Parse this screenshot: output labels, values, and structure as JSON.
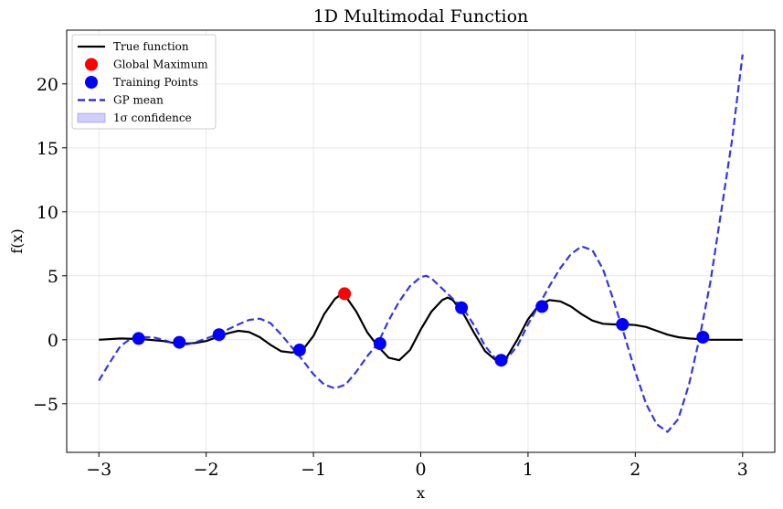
{
  "chart_data": {
    "type": "line",
    "title": "1D Multimodal Function",
    "xlabel": "x",
    "ylabel": "f(x)",
    "xlim": [
      -3.3,
      3.3
    ],
    "ylim": [
      -8.8,
      24.2
    ],
    "xticks": [
      -3,
      -2,
      -1,
      0,
      1,
      2,
      3
    ],
    "xtick_labels": [
      "−3",
      "−2",
      "−1",
      "0",
      "1",
      "2",
      "3"
    ],
    "yticks": [
      -5,
      0,
      5,
      10,
      15,
      20
    ],
    "ytick_labels": [
      "−5",
      "0",
      "5",
      "10",
      "15",
      "20"
    ],
    "grid": true,
    "legend_position": "top-left",
    "series": [
      {
        "name": "True function",
        "kind": "line",
        "color": "#000000",
        "style": "solid",
        "x": [
          -3.0,
          -2.8,
          -2.6,
          -2.4,
          -2.3,
          -2.2,
          -2.1,
          -2.0,
          -1.9,
          -1.8,
          -1.7,
          -1.6,
          -1.5,
          -1.4,
          -1.3,
          -1.2,
          -1.1,
          -1.0,
          -0.9,
          -0.8,
          -0.75,
          -0.7,
          -0.6,
          -0.5,
          -0.4,
          -0.3,
          -0.2,
          -0.1,
          0.0,
          0.1,
          0.2,
          0.25,
          0.3,
          0.4,
          0.5,
          0.6,
          0.7,
          0.75,
          0.8,
          0.9,
          1.0,
          1.1,
          1.2,
          1.3,
          1.4,
          1.5,
          1.6,
          1.7,
          1.8,
          1.9,
          2.0,
          2.1,
          2.2,
          2.3,
          2.4,
          2.5,
          2.6,
          2.7,
          2.8,
          3.0
        ],
        "y": [
          0.0,
          0.1,
          0.05,
          -0.1,
          -0.25,
          -0.3,
          -0.25,
          -0.1,
          0.2,
          0.5,
          0.7,
          0.6,
          0.2,
          -0.4,
          -0.9,
          -1.0,
          -0.8,
          0.3,
          2.0,
          3.2,
          3.5,
          3.4,
          2.2,
          0.6,
          -0.5,
          -1.4,
          -1.6,
          -0.8,
          0.8,
          2.2,
          3.1,
          3.3,
          3.1,
          2.0,
          0.5,
          -0.9,
          -1.6,
          -1.7,
          -1.4,
          0.0,
          1.6,
          2.7,
          3.1,
          3.0,
          2.6,
          2.0,
          1.5,
          1.25,
          1.2,
          1.2,
          1.15,
          1.0,
          0.7,
          0.4,
          0.2,
          0.1,
          0.05,
          0.0,
          0.0,
          0.0
        ]
      },
      {
        "name": "GP mean",
        "kind": "line",
        "color": "#1f1fe6",
        "style": "dashed",
        "x": [
          -3.0,
          -2.9,
          -2.8,
          -2.7,
          -2.6,
          -2.5,
          -2.4,
          -2.3,
          -2.2,
          -2.1,
          -2.0,
          -1.9,
          -1.8,
          -1.7,
          -1.6,
          -1.5,
          -1.4,
          -1.3,
          -1.2,
          -1.1,
          -1.0,
          -0.9,
          -0.8,
          -0.7,
          -0.6,
          -0.5,
          -0.4,
          -0.3,
          -0.2,
          -0.1,
          0.0,
          0.05,
          0.1,
          0.2,
          0.3,
          0.4,
          0.5,
          0.6,
          0.7,
          0.75,
          0.8,
          0.9,
          1.0,
          1.1,
          1.2,
          1.3,
          1.4,
          1.5,
          1.6,
          1.7,
          1.8,
          1.9,
          2.0,
          2.1,
          2.2,
          2.3,
          2.4,
          2.5,
          2.6,
          2.7,
          2.8,
          2.9,
          3.0
        ],
        "y": [
          -3.2,
          -1.8,
          -0.5,
          0.1,
          0.2,
          0.2,
          0.0,
          -0.3,
          -0.4,
          -0.2,
          0.1,
          0.4,
          0.8,
          1.2,
          1.55,
          1.65,
          1.3,
          0.4,
          -0.6,
          -1.6,
          -2.7,
          -3.5,
          -3.8,
          -3.5,
          -2.5,
          -1.3,
          -0.3,
          1.5,
          3.0,
          4.2,
          4.9,
          5.0,
          4.8,
          4.0,
          3.2,
          2.4,
          1.1,
          -0.5,
          -1.5,
          -1.7,
          -1.5,
          -0.5,
          1.2,
          2.7,
          4.2,
          5.6,
          6.7,
          7.3,
          7.0,
          5.5,
          3.0,
          0.3,
          -2.5,
          -5.0,
          -6.6,
          -7.2,
          -6.2,
          -3.5,
          0.2,
          4.5,
          10.0,
          15.5,
          22.3
        ]
      },
      {
        "name": "Global Maximum",
        "kind": "scatter",
        "color": "#ff0000",
        "x": [
          -0.71
        ],
        "y": [
          3.6
        ]
      },
      {
        "name": "Training Points",
        "kind": "scatter",
        "color": "#0000ff",
        "x": [
          -2.63,
          -2.25,
          -1.88,
          -1.13,
          -0.38,
          0.38,
          0.75,
          1.13,
          1.88,
          2.63
        ],
        "y": [
          0.1,
          -0.2,
          0.4,
          -0.8,
          -0.3,
          2.5,
          -1.6,
          2.6,
          1.2,
          0.2
        ]
      }
    ],
    "confidence_band": {
      "name": "1σ confidence",
      "color": "#6060ee"
    },
    "legend_entries": [
      "True function",
      "Global Maximum",
      "Training Points",
      "GP mean",
      "1σ confidence"
    ]
  }
}
